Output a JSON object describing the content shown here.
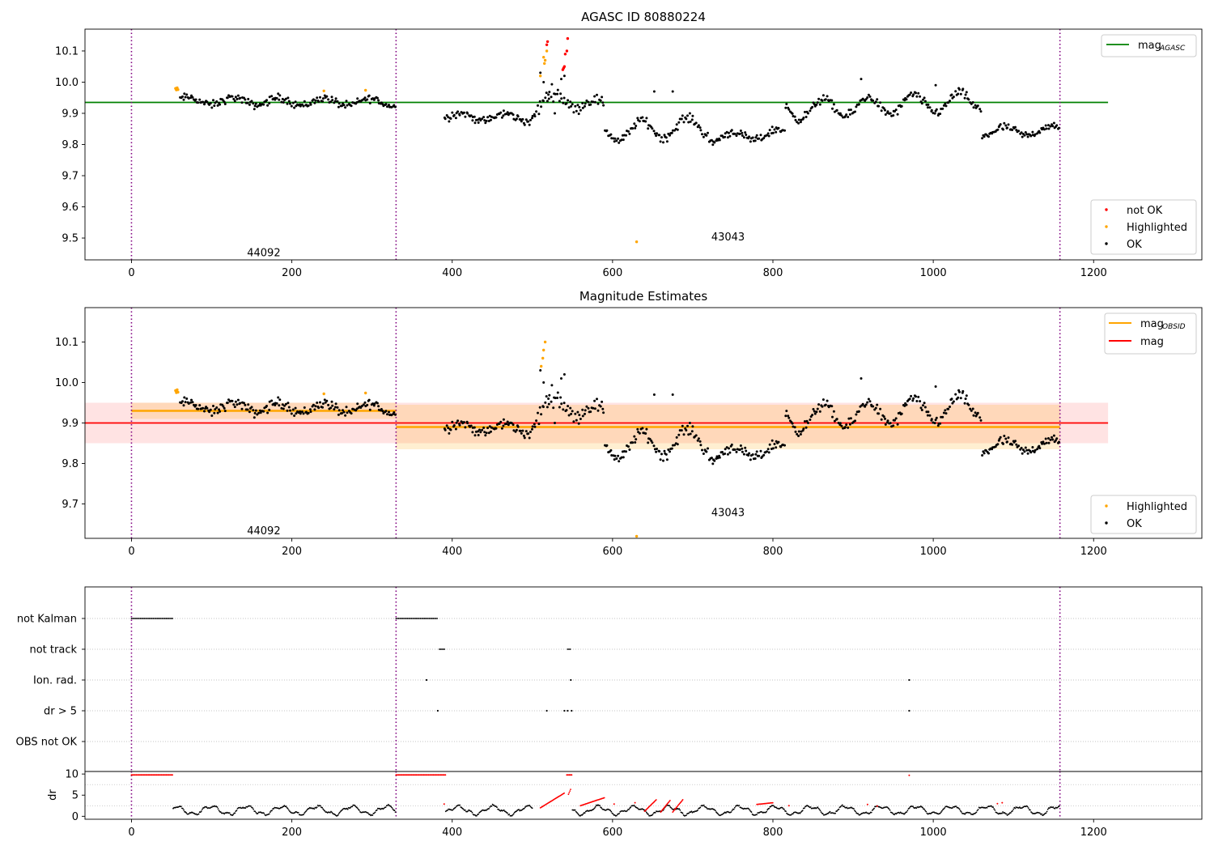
{
  "chart_data": [
    {
      "id": "agasc",
      "type": "scatter",
      "title": "AGASC ID 80880224",
      "xlim": [
        -58,
        1335
      ],
      "ylim": [
        9.43,
        10.17
      ],
      "xticks": [
        0,
        200,
        400,
        600,
        800,
        1000,
        1200
      ],
      "yticks": [
        9.5,
        9.6,
        9.7,
        9.8,
        9.9,
        10.0,
        10.1
      ],
      "yticks_label": [
        "9.5",
        "9.6",
        "9.7",
        "9.8",
        "9.9",
        "10.0",
        "10.1"
      ],
      "vlines": [
        0,
        330,
        1158
      ],
      "annotations": [
        {
          "text": "44092",
          "x": 165,
          "y": 9.455
        },
        {
          "text": "43043",
          "x": 744,
          "y": 9.505
        }
      ],
      "reference_line": {
        "name": "mag",
        "name_sub": "AGASC",
        "y": 9.935,
        "x": [
          -58,
          1218
        ],
        "color": "#008000"
      },
      "legend_top": [
        {
          "label": "mag",
          "sub": "AGASC",
          "color": "#008000",
          "kind": "line"
        }
      ],
      "legend_bottom": [
        {
          "label": "not OK",
          "color": "#ff0000",
          "kind": "dot"
        },
        {
          "label": "Highlighted",
          "color": "#ffa500",
          "kind": "dot"
        },
        {
          "label": "OK",
          "color": "#000000",
          "kind": "dot"
        }
      ],
      "ok_segments": [
        {
          "x0": 60,
          "x1": 330,
          "y0": 9.94,
          "y1": 9.935,
          "amp": 0.012,
          "noise": 0.011,
          "n": 190
        },
        {
          "x0": 390,
          "x1": 500,
          "y0": 9.89,
          "y1": 9.885,
          "amp": 0.012,
          "noise": 0.011,
          "n": 80
        },
        {
          "x0": 500,
          "x1": 545,
          "y0": 9.91,
          "y1": 9.96,
          "amp": 0.03,
          "noise": 0.02,
          "n": 30
        },
        {
          "x0": 545,
          "x1": 590,
          "y0": 9.94,
          "y1": 9.92,
          "amp": 0.02,
          "noise": 0.015,
          "n": 30
        },
        {
          "x0": 590,
          "x1": 720,
          "y0": 9.84,
          "y1": 9.86,
          "amp": 0.03,
          "noise": 0.012,
          "n": 90
        },
        {
          "x0": 720,
          "x1": 815,
          "y0": 9.82,
          "y1": 9.835,
          "amp": 0.015,
          "noise": 0.011,
          "n": 70
        },
        {
          "x0": 815,
          "x1": 1060,
          "y0": 9.91,
          "y1": 9.94,
          "amp": 0.03,
          "noise": 0.012,
          "n": 170
        },
        {
          "x0": 1060,
          "x1": 1158,
          "y0": 9.84,
          "y1": 9.845,
          "amp": 0.014,
          "noise": 0.011,
          "n": 70
        }
      ],
      "ok_points": [
        [
          510,
          10.03
        ],
        [
          514,
          10.0
        ],
        [
          520,
          9.96
        ],
        [
          528,
          9.9
        ],
        [
          536,
          10.01
        ],
        [
          540,
          10.02
        ],
        [
          652,
          9.97
        ],
        [
          675,
          9.97
        ],
        [
          910,
          10.01
        ],
        [
          1003,
          9.99
        ]
      ],
      "highlighted_points": [
        [
          55,
          9.98
        ],
        [
          56,
          9.975
        ],
        [
          57,
          9.982
        ],
        [
          58,
          9.976
        ],
        [
          240,
          9.972
        ],
        [
          292,
          9.974
        ],
        [
          514,
          10.08
        ],
        [
          515,
          10.06
        ],
        [
          516,
          10.07
        ],
        [
          518,
          10.1
        ],
        [
          510,
          10.02
        ],
        [
          630,
          9.488
        ]
      ],
      "not_ok_points": [
        [
          518,
          10.12
        ],
        [
          519,
          10.13
        ],
        [
          538,
          10.04
        ],
        [
          540,
          10.05
        ],
        [
          541,
          10.09
        ],
        [
          543,
          10.1
        ],
        [
          544,
          10.14
        ],
        [
          539,
          10.045
        ]
      ]
    },
    {
      "id": "estimates",
      "type": "scatter",
      "title": "Magnitude Estimates",
      "xlim": [
        -58,
        1335
      ],
      "ylim": [
        9.615,
        10.185
      ],
      "xticks": [
        0,
        200,
        400,
        600,
        800,
        1000,
        1200
      ],
      "yticks": [
        9.7,
        9.8,
        9.9,
        10.0,
        10.1
      ],
      "yticks_label": [
        "9.7",
        "9.8",
        "9.9",
        "10.0",
        "10.1"
      ],
      "vlines": [
        0,
        330,
        1158
      ],
      "annotations": [
        {
          "text": "44092",
          "x": 165,
          "y": 9.635
        },
        {
          "text": "43043",
          "x": 744,
          "y": 9.68
        }
      ],
      "mag_line": {
        "y": 9.9,
        "x": [
          -58,
          1218
        ],
        "band": [
          9.85,
          9.95
        ],
        "color": "#ff0000"
      },
      "obsid_segments": [
        {
          "x": [
            0,
            330
          ],
          "y": 9.93,
          "band": [
            9.91,
            9.95
          ]
        },
        {
          "x": [
            330,
            1158
          ],
          "y": 9.89,
          "band": [
            9.835,
            9.945
          ]
        }
      ],
      "legend_top": [
        {
          "label": "mag",
          "sub": "OBSID",
          "color": "#ffa500",
          "kind": "line"
        },
        {
          "label": "mag",
          "sub": "",
          "color": "#ff0000",
          "kind": "line"
        }
      ],
      "legend_bottom": [
        {
          "label": "Highlighted",
          "color": "#ffa500",
          "kind": "dot"
        },
        {
          "label": "OK",
          "color": "#000000",
          "kind": "dot"
        }
      ],
      "highlighted_points": [
        [
          55,
          9.98
        ],
        [
          56,
          9.975
        ],
        [
          57,
          9.982
        ],
        [
          58,
          9.976
        ],
        [
          240,
          9.972
        ],
        [
          292,
          9.974
        ],
        [
          511,
          10.04
        ],
        [
          513,
          10.06
        ],
        [
          514,
          10.08
        ],
        [
          516,
          10.1
        ],
        [
          630,
          9.62
        ]
      ]
    },
    {
      "id": "flags",
      "type": "scatter",
      "xlim": [
        -58,
        1335
      ],
      "categories": [
        "not Kalman",
        "not track",
        "Ion. rad.",
        "dr > 5",
        "OBS not OK"
      ],
      "vlines": [
        0,
        330,
        1158
      ],
      "runs": [
        {
          "row": 0,
          "x0": 0,
          "x1": 52
        },
        {
          "row": 0,
          "x0": 330,
          "x1": 382
        },
        {
          "row": 1,
          "x0": 384,
          "x1": 392
        },
        {
          "row": 1,
          "x0": 544,
          "x1": 548
        }
      ],
      "points": [
        [
          2,
          368
        ],
        [
          2,
          548
        ],
        [
          2,
          970
        ],
        [
          3,
          382
        ],
        [
          3,
          518
        ],
        [
          3,
          540
        ],
        [
          3,
          544
        ],
        [
          3,
          549
        ],
        [
          3,
          970
        ]
      ]
    },
    {
      "id": "dr",
      "type": "scatter",
      "ylabel": "dr",
      "xlim": [
        -58,
        1335
      ],
      "ylim": [
        -0.7,
        10.6
      ],
      "xticks": [
        0,
        200,
        400,
        600,
        800,
        1000,
        1200
      ],
      "yticks": [
        0,
        5,
        10
      ],
      "yticks_label": [
        "0",
        "5",
        "10"
      ],
      "vlines": [
        0,
        330,
        1158
      ],
      "red_runs": [
        {
          "x0": 0,
          "x1": 52,
          "y": 9.8
        },
        {
          "x0": 330,
          "x1": 392,
          "y": 9.8
        },
        {
          "x0": 543,
          "x1": 550,
          "y": 9.8
        }
      ],
      "red_points": [
        [
          970,
          9.7
        ],
        [
          390,
          2.9
        ],
        [
          602,
          2.9
        ],
        [
          628,
          3.2
        ],
        [
          820,
          2.5
        ],
        [
          1080,
          3.0
        ],
        [
          1086,
          3.2
        ],
        [
          918,
          2.8
        ],
        [
          930,
          2.4
        ]
      ],
      "black_segments": [
        {
          "x0": 52,
          "x1": 330
        },
        {
          "x0": 392,
          "x1": 500
        },
        {
          "x0": 550,
          "x1": 1158
        }
      ],
      "red_ramps": [
        [
          510,
          540,
          2.0,
          5.5
        ],
        [
          545,
          548,
          5.2,
          6.5
        ],
        [
          560,
          590,
          2.5,
          4.4
        ],
        [
          640,
          655,
          1.2,
          4.0
        ],
        [
          660,
          672,
          1.0,
          3.8
        ],
        [
          675,
          688,
          1.0,
          4.0
        ],
        [
          780,
          800,
          2.8,
          3.2
        ]
      ]
    }
  ]
}
